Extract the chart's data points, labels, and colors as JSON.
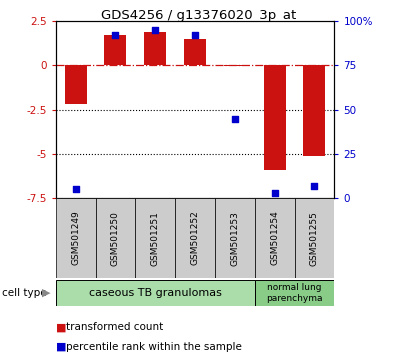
{
  "title": "GDS4256 / g13376020_3p_at",
  "samples": [
    "GSM501249",
    "GSM501250",
    "GSM501251",
    "GSM501252",
    "GSM501253",
    "GSM501254",
    "GSM501255"
  ],
  "transformed_counts": [
    -2.2,
    1.7,
    1.9,
    1.5,
    -0.05,
    -5.9,
    -5.1
  ],
  "percentile_ranks": [
    5,
    92,
    95,
    92,
    45,
    3,
    7
  ],
  "ylim_left": [
    -7.5,
    2.5
  ],
  "ylim_right": [
    0,
    100
  ],
  "yticks_left": [
    2.5,
    0,
    -2.5,
    -5.0,
    -7.5
  ],
  "yticks_right": [
    100,
    75,
    50,
    25,
    0
  ],
  "ytick_labels_left": [
    "2.5",
    "0",
    "-2.5",
    "-5",
    "-7.5"
  ],
  "ytick_labels_right": [
    "100%",
    "75",
    "50",
    "25",
    "0"
  ],
  "hlines_dotted": [
    -2.5,
    -5.0
  ],
  "hline_dashed": 0,
  "bar_color": "#cc1111",
  "dot_color": "#0000cc",
  "cell_types": [
    {
      "label": "caseous TB granulomas",
      "n_samples": 5,
      "color": "#aaddaa"
    },
    {
      "label": "normal lung\nparenchyma",
      "n_samples": 2,
      "color": "#88cc88"
    }
  ],
  "legend_bar_label": "transformed count",
  "legend_dot_label": "percentile rank within the sample",
  "cell_type_label": "cell type",
  "bg_color": "#ffffff",
  "tick_label_color_left": "#cc1111",
  "tick_label_color_right": "#0000cc",
  "xtick_box_color": "#cccccc",
  "bar_width": 0.55
}
